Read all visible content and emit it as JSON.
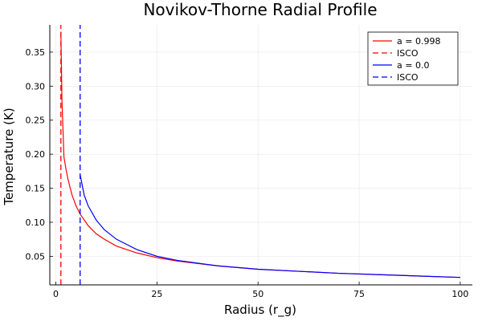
{
  "chart_data": {
    "type": "line",
    "title": "Novikov-Thorne Radial Profile",
    "xlabel": "Radius (r_g)",
    "ylabel": "Temperature (K)",
    "xlim": [
      -1.5,
      103
    ],
    "ylim": [
      0.008,
      0.39
    ],
    "xticks": [
      0,
      25,
      50,
      75,
      100
    ],
    "yticks": [
      0.05,
      0.1,
      0.15,
      0.2,
      0.25,
      0.3,
      0.35
    ],
    "xtick_labels": [
      "0",
      "25",
      "50",
      "75",
      "100"
    ],
    "ytick_labels": [
      "0.05",
      "0.10",
      "0.15",
      "0.20",
      "0.25",
      "0.30",
      "0.35"
    ],
    "grid": true,
    "legend_position": "top-right",
    "series": [
      {
        "name": "a = 0.998",
        "color": "#ff0000",
        "style": "solid",
        "x": [
          1.24,
          1.5,
          2.0,
          2.5,
          3,
          4,
          5,
          6,
          8,
          10,
          12,
          15,
          20,
          25,
          30,
          40,
          50,
          60,
          70,
          80,
          90,
          100
        ],
        "y": [
          0.38,
          0.28,
          0.196,
          0.178,
          0.163,
          0.14,
          0.124,
          0.112,
          0.095,
          0.083,
          0.075,
          0.065,
          0.055,
          0.048,
          0.043,
          0.036,
          0.031,
          0.028,
          0.025,
          0.023,
          0.021,
          0.019
        ]
      },
      {
        "name": "ISCO",
        "color": "#ff0000",
        "style": "dashed",
        "x": [
          1.24,
          1.24
        ],
        "y": [
          0.008,
          0.39
        ]
      },
      {
        "name": "a = 0.0",
        "color": "#0000ff",
        "style": "solid",
        "x": [
          6,
          7,
          8,
          10,
          12,
          15,
          20,
          25,
          30,
          40,
          50,
          60,
          70,
          80,
          90,
          100
        ],
        "y": [
          0.17,
          0.14,
          0.124,
          0.103,
          0.089,
          0.075,
          0.06,
          0.05,
          0.044,
          0.036,
          0.031,
          0.028,
          0.025,
          0.023,
          0.021,
          0.019
        ]
      },
      {
        "name": "ISCO",
        "color": "#0000ff",
        "style": "dashed",
        "x": [
          6,
          6
        ],
        "y": [
          0.008,
          0.39
        ]
      }
    ]
  }
}
